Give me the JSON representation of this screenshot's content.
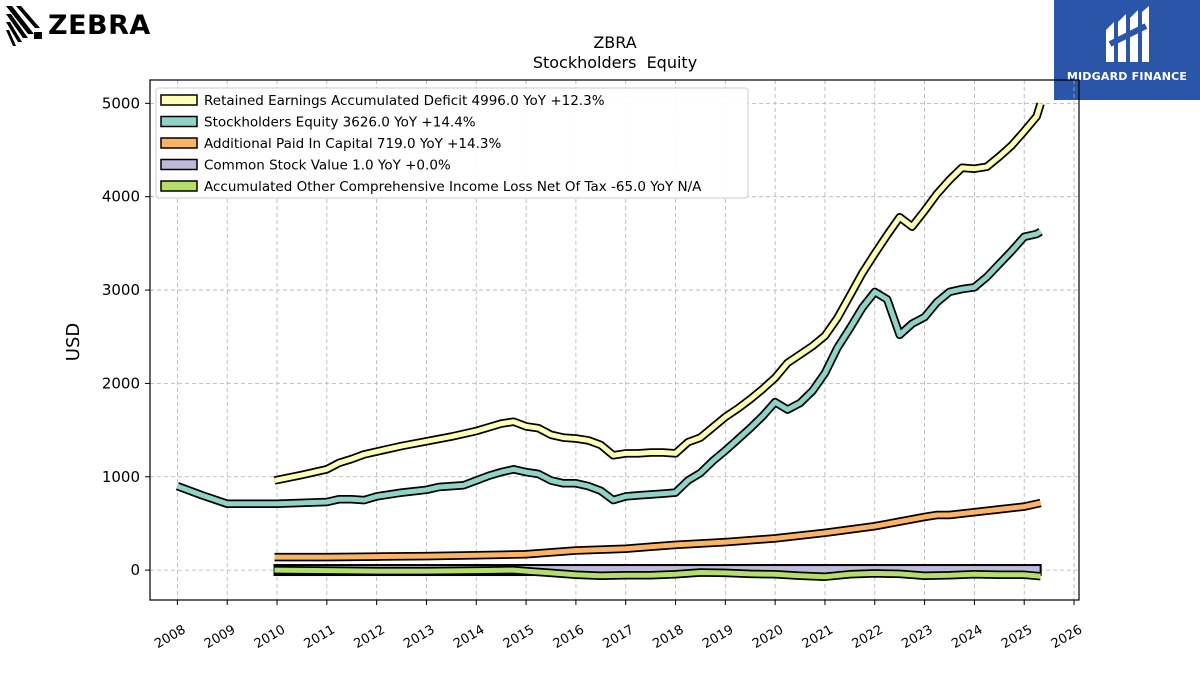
{
  "chart_data": {
    "type": "line",
    "title": "ZBRA",
    "subtitle": "Stockholders  Equity",
    "ylabel": "USD",
    "xlabel": "",
    "xlim": [
      2007.45,
      2026.1
    ],
    "ylim": [
      -320,
      5250
    ],
    "x_ticks": [
      2008,
      2009,
      2010,
      2011,
      2012,
      2013,
      2014,
      2015,
      2016,
      2017,
      2018,
      2019,
      2020,
      2021,
      2022,
      2023,
      2024,
      2025,
      2026
    ],
    "y_ticks": [
      0,
      1000,
      2000,
      3000,
      4000,
      5000
    ],
    "grid": true,
    "legend_position": "top-left",
    "series": [
      {
        "name": "Retained Earnings Accumulated Deficit  4996.0 YoY +12.3%",
        "color": "#ffffb3",
        "points": [
          [
            2009.95,
            960
          ],
          [
            2010.5,
            1020
          ],
          [
            2011.0,
            1080
          ],
          [
            2011.25,
            1150
          ],
          [
            2011.5,
            1190
          ],
          [
            2011.75,
            1240
          ],
          [
            2012.0,
            1270
          ],
          [
            2012.5,
            1330
          ],
          [
            2013.0,
            1380
          ],
          [
            2013.5,
            1430
          ],
          [
            2014.0,
            1490
          ],
          [
            2014.25,
            1530
          ],
          [
            2014.5,
            1570
          ],
          [
            2014.75,
            1590
          ],
          [
            2015.0,
            1540
          ],
          [
            2015.25,
            1520
          ],
          [
            2015.5,
            1450
          ],
          [
            2015.75,
            1420
          ],
          [
            2016.0,
            1410
          ],
          [
            2016.25,
            1390
          ],
          [
            2016.5,
            1340
          ],
          [
            2016.75,
            1230
          ],
          [
            2017.0,
            1250
          ],
          [
            2017.25,
            1250
          ],
          [
            2017.5,
            1260
          ],
          [
            2017.75,
            1260
          ],
          [
            2018.0,
            1250
          ],
          [
            2018.25,
            1370
          ],
          [
            2018.5,
            1420
          ],
          [
            2018.75,
            1530
          ],
          [
            2019.0,
            1640
          ],
          [
            2019.25,
            1730
          ],
          [
            2019.5,
            1830
          ],
          [
            2019.75,
            1940
          ],
          [
            2020.0,
            2060
          ],
          [
            2020.25,
            2220
          ],
          [
            2020.5,
            2310
          ],
          [
            2020.75,
            2400
          ],
          [
            2021.0,
            2510
          ],
          [
            2021.25,
            2700
          ],
          [
            2021.5,
            2940
          ],
          [
            2021.75,
            3180
          ],
          [
            2022.0,
            3390
          ],
          [
            2022.25,
            3590
          ],
          [
            2022.5,
            3780
          ],
          [
            2022.75,
            3680
          ],
          [
            2023.0,
            3850
          ],
          [
            2023.25,
            4030
          ],
          [
            2023.5,
            4180
          ],
          [
            2023.75,
            4310
          ],
          [
            2024.0,
            4300
          ],
          [
            2024.25,
            4320
          ],
          [
            2024.5,
            4430
          ],
          [
            2024.75,
            4550
          ],
          [
            2025.0,
            4700
          ],
          [
            2025.25,
            4860
          ],
          [
            2025.33,
            4996
          ]
        ]
      },
      {
        "name": "Stockholders Equity  3626.0 YoY +14.4%",
        "color": "#8dd3c7",
        "points": [
          [
            2008.0,
            900
          ],
          [
            2008.5,
            800
          ],
          [
            2009.0,
            710
          ],
          [
            2009.5,
            710
          ],
          [
            2010.0,
            710
          ],
          [
            2010.5,
            720
          ],
          [
            2011.0,
            730
          ],
          [
            2011.25,
            760
          ],
          [
            2011.5,
            760
          ],
          [
            2011.75,
            750
          ],
          [
            2012.0,
            790
          ],
          [
            2012.5,
            830
          ],
          [
            2013.0,
            860
          ],
          [
            2013.25,
            890
          ],
          [
            2013.5,
            900
          ],
          [
            2013.75,
            910
          ],
          [
            2014.0,
            960
          ],
          [
            2014.25,
            1010
          ],
          [
            2014.5,
            1050
          ],
          [
            2014.75,
            1080
          ],
          [
            2015.0,
            1050
          ],
          [
            2015.25,
            1030
          ],
          [
            2015.5,
            960
          ],
          [
            2015.75,
            930
          ],
          [
            2016.0,
            930
          ],
          [
            2016.25,
            900
          ],
          [
            2016.5,
            850
          ],
          [
            2016.75,
            750
          ],
          [
            2017.0,
            790
          ],
          [
            2017.25,
            800
          ],
          [
            2017.5,
            810
          ],
          [
            2017.75,
            820
          ],
          [
            2018.0,
            830
          ],
          [
            2018.25,
            960
          ],
          [
            2018.5,
            1040
          ],
          [
            2018.75,
            1170
          ],
          [
            2019.0,
            1280
          ],
          [
            2019.25,
            1400
          ],
          [
            2019.5,
            1520
          ],
          [
            2019.75,
            1650
          ],
          [
            2020.0,
            1800
          ],
          [
            2020.25,
            1720
          ],
          [
            2020.5,
            1790
          ],
          [
            2020.75,
            1920
          ],
          [
            2021.0,
            2110
          ],
          [
            2021.25,
            2380
          ],
          [
            2021.5,
            2590
          ],
          [
            2021.75,
            2810
          ],
          [
            2022.0,
            2980
          ],
          [
            2022.25,
            2900
          ],
          [
            2022.5,
            2520
          ],
          [
            2022.75,
            2640
          ],
          [
            2023.0,
            2710
          ],
          [
            2023.25,
            2870
          ],
          [
            2023.5,
            2980
          ],
          [
            2023.75,
            3010
          ],
          [
            2024.0,
            3030
          ],
          [
            2024.25,
            3140
          ],
          [
            2024.5,
            3280
          ],
          [
            2024.75,
            3420
          ],
          [
            2025.0,
            3570
          ],
          [
            2025.25,
            3600
          ],
          [
            2025.33,
            3626
          ]
        ]
      },
      {
        "name": "Additional Paid In Capital  719.0 YoY +14.3%",
        "color": "#fdb462",
        "points": [
          [
            2009.95,
            140
          ],
          [
            2011.0,
            140
          ],
          [
            2012.0,
            145
          ],
          [
            2013.0,
            150
          ],
          [
            2014.0,
            160
          ],
          [
            2015.0,
            170
          ],
          [
            2015.5,
            190
          ],
          [
            2016.0,
            210
          ],
          [
            2016.5,
            220
          ],
          [
            2017.0,
            230
          ],
          [
            2017.5,
            250
          ],
          [
            2018.0,
            270
          ],
          [
            2019.0,
            300
          ],
          [
            2020.0,
            340
          ],
          [
            2021.0,
            400
          ],
          [
            2022.0,
            470
          ],
          [
            2022.5,
            520
          ],
          [
            2023.0,
            570
          ],
          [
            2023.25,
            590
          ],
          [
            2023.5,
            590
          ],
          [
            2024.0,
            620
          ],
          [
            2024.5,
            650
          ],
          [
            2025.0,
            680
          ],
          [
            2025.33,
            719
          ]
        ]
      },
      {
        "name": "Common Stock Value  1.0 YoY +0.0%",
        "color": "#bebada",
        "fill": true,
        "points": [
          [
            2009.95,
            1
          ],
          [
            2025.33,
            1
          ]
        ]
      },
      {
        "name": "Accumulated Other Comprehensive Income Loss Net Of Tax  -65.0 YoY N/A",
        "color": "#b3de69",
        "points": [
          [
            2009.95,
            0
          ],
          [
            2011.0,
            -5
          ],
          [
            2012.0,
            -10
          ],
          [
            2013.0,
            -10
          ],
          [
            2014.0,
            -5
          ],
          [
            2014.75,
            0
          ],
          [
            2015.0,
            -10
          ],
          [
            2015.5,
            -30
          ],
          [
            2016.0,
            -50
          ],
          [
            2016.5,
            -60
          ],
          [
            2017.0,
            -55
          ],
          [
            2017.5,
            -55
          ],
          [
            2018.0,
            -45
          ],
          [
            2018.5,
            -25
          ],
          [
            2019.0,
            -30
          ],
          [
            2019.5,
            -40
          ],
          [
            2020.0,
            -45
          ],
          [
            2020.5,
            -60
          ],
          [
            2021.0,
            -70
          ],
          [
            2021.5,
            -45
          ],
          [
            2022.0,
            -35
          ],
          [
            2022.5,
            -40
          ],
          [
            2023.0,
            -60
          ],
          [
            2023.5,
            -55
          ],
          [
            2024.0,
            -45
          ],
          [
            2024.5,
            -50
          ],
          [
            2025.0,
            -50
          ],
          [
            2025.33,
            -65
          ]
        ]
      }
    ]
  },
  "logos": {
    "left": "ZEBRA",
    "right": "MIDGARD FINANCE"
  },
  "icons": {
    "left_logo": "zebra-stripes-icon",
    "right_logo": "midgard-m-icon"
  }
}
